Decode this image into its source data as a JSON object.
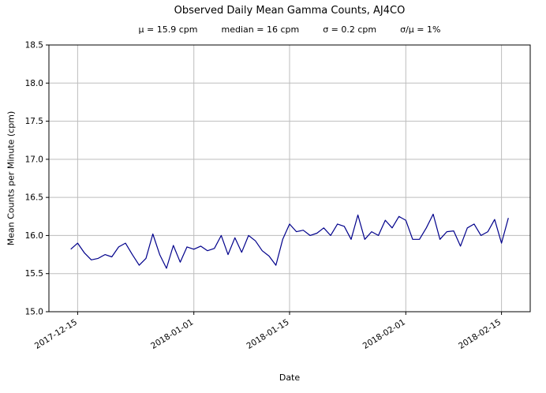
{
  "chart_data": {
    "type": "line",
    "title": "Observed Daily Mean Gamma Counts, AJ4CO",
    "stats": [
      "μ = 15.9 cpm",
      "median = 16 cpm",
      "σ = 0.2 cpm",
      "σ/μ = 1%"
    ],
    "xlabel": "Date",
    "ylabel": "Mean Counts per Minute (cpm)",
    "ylim": [
      15.0,
      18.5
    ],
    "ytick_step": 0.5,
    "xticks": [
      "2017-12-15",
      "2018-01-01",
      "2018-01-15",
      "2018-02-01",
      "2018-02-15"
    ],
    "legend": "none",
    "grid": "on",
    "dates": [
      "2017-12-14",
      "2017-12-15",
      "2017-12-16",
      "2017-12-17",
      "2017-12-18",
      "2017-12-19",
      "2017-12-20",
      "2017-12-21",
      "2017-12-22",
      "2017-12-23",
      "2017-12-24",
      "2017-12-25",
      "2017-12-26",
      "2017-12-27",
      "2017-12-28",
      "2017-12-29",
      "2017-12-30",
      "2017-12-31",
      "2018-01-01",
      "2018-01-02",
      "2018-01-03",
      "2018-01-04",
      "2018-01-05",
      "2018-01-06",
      "2018-01-07",
      "2018-01-08",
      "2018-01-09",
      "2018-01-10",
      "2018-01-11",
      "2018-01-12",
      "2018-01-13",
      "2018-01-14",
      "2018-01-15",
      "2018-01-16",
      "2018-01-17",
      "2018-01-18",
      "2018-01-19",
      "2018-01-20",
      "2018-01-21",
      "2018-01-22",
      "2018-01-23",
      "2018-01-24",
      "2018-01-25",
      "2018-01-26",
      "2018-01-27",
      "2018-01-28",
      "2018-01-29",
      "2018-01-30",
      "2018-01-31",
      "2018-02-01",
      "2018-02-02",
      "2018-02-03",
      "2018-02-04",
      "2018-02-05",
      "2018-02-06",
      "2018-02-07",
      "2018-02-08",
      "2018-02-09",
      "2018-02-10",
      "2018-02-11",
      "2018-02-12",
      "2018-02-13",
      "2018-02-14",
      "2018-02-15",
      "2018-02-16"
    ],
    "values": [
      15.82,
      15.9,
      15.77,
      15.68,
      15.7,
      15.75,
      15.72,
      15.85,
      15.9,
      15.75,
      15.61,
      15.7,
      16.02,
      15.75,
      15.57,
      15.87,
      15.65,
      15.85,
      15.82,
      15.86,
      15.8,
      15.83,
      16.0,
      15.75,
      15.97,
      15.78,
      16.0,
      15.93,
      15.8,
      15.73,
      15.61,
      15.95,
      16.15,
      16.05,
      16.07,
      16.0,
      16.03,
      16.1,
      16.0,
      16.15,
      16.12,
      15.95,
      16.27,
      15.95,
      16.05,
      16.0,
      16.2,
      16.1,
      16.25,
      16.2,
      15.95,
      15.95,
      16.1,
      16.28,
      15.95,
      16.05,
      16.06,
      15.86,
      16.1,
      16.15,
      16.0,
      16.05,
      16.21,
      15.9,
      16.23
    ],
    "colors": {
      "line": "#00008b",
      "grid": "#bdbdbd",
      "axis": "#000000"
    }
  }
}
